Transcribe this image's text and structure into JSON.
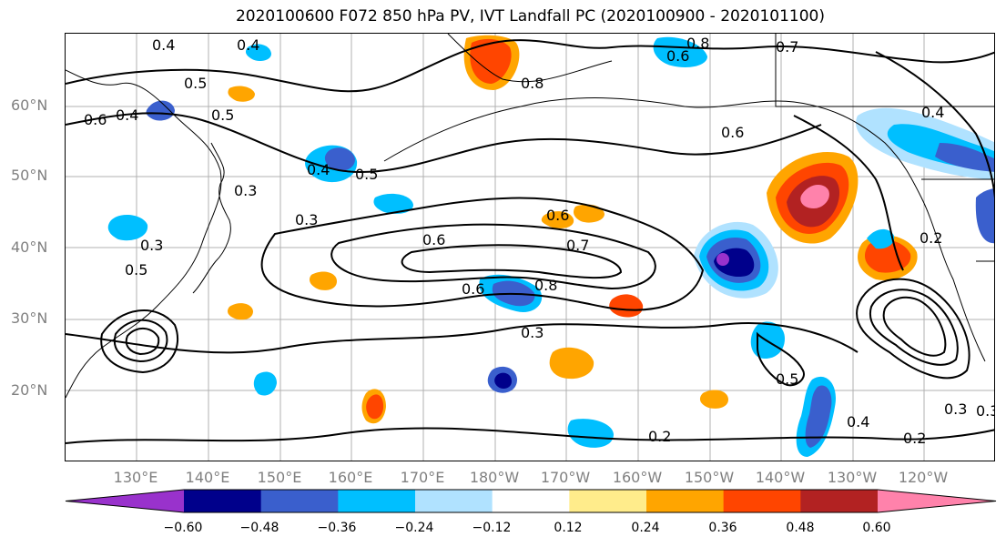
{
  "title": "2020100600 F072 850 hPa PV, IVT Landfall PC (2020100900 - 2020101100)",
  "lat_labels": [
    "60°N",
    "50°N",
    "40°N",
    "30°N",
    "20°N"
  ],
  "lon_labels": [
    "130°E",
    "140°E",
    "150°E",
    "160°E",
    "170°E",
    "180°W",
    "170°W",
    "160°W",
    "150°W",
    "140°W",
    "130°W",
    "120°W"
  ],
  "colorbar": {
    "colors": [
      "#9932cc",
      "#00008b",
      "#3a5fcd",
      "#00bfff",
      "#b0e2ff",
      "#ffffff",
      "#ffec8b",
      "#ffa500",
      "#ff4500",
      "#b22222",
      "#ff82ab"
    ],
    "ticks": [
      "−0.60",
      "−0.48",
      "−0.36",
      "−0.24",
      "−0.12",
      "0.12",
      "0.24",
      "0.36",
      "0.48",
      "0.60"
    ]
  },
  "contour_labels": [
    "0.4",
    "0.4",
    "0.5",
    "0.6",
    "0.4",
    "0.5",
    "0.3",
    "0.4",
    "0.5",
    "0.3",
    "0.3",
    "0.5",
    "0.6",
    "0.7",
    "0.6",
    "0.8",
    "0.3",
    "0.6",
    "0.8",
    "0.7",
    "0.8",
    "0.6",
    "0.6",
    "0.4",
    "0.2",
    "0.5",
    "0.4",
    "0.2",
    "0.2",
    "0.3",
    "0.3"
  ]
}
